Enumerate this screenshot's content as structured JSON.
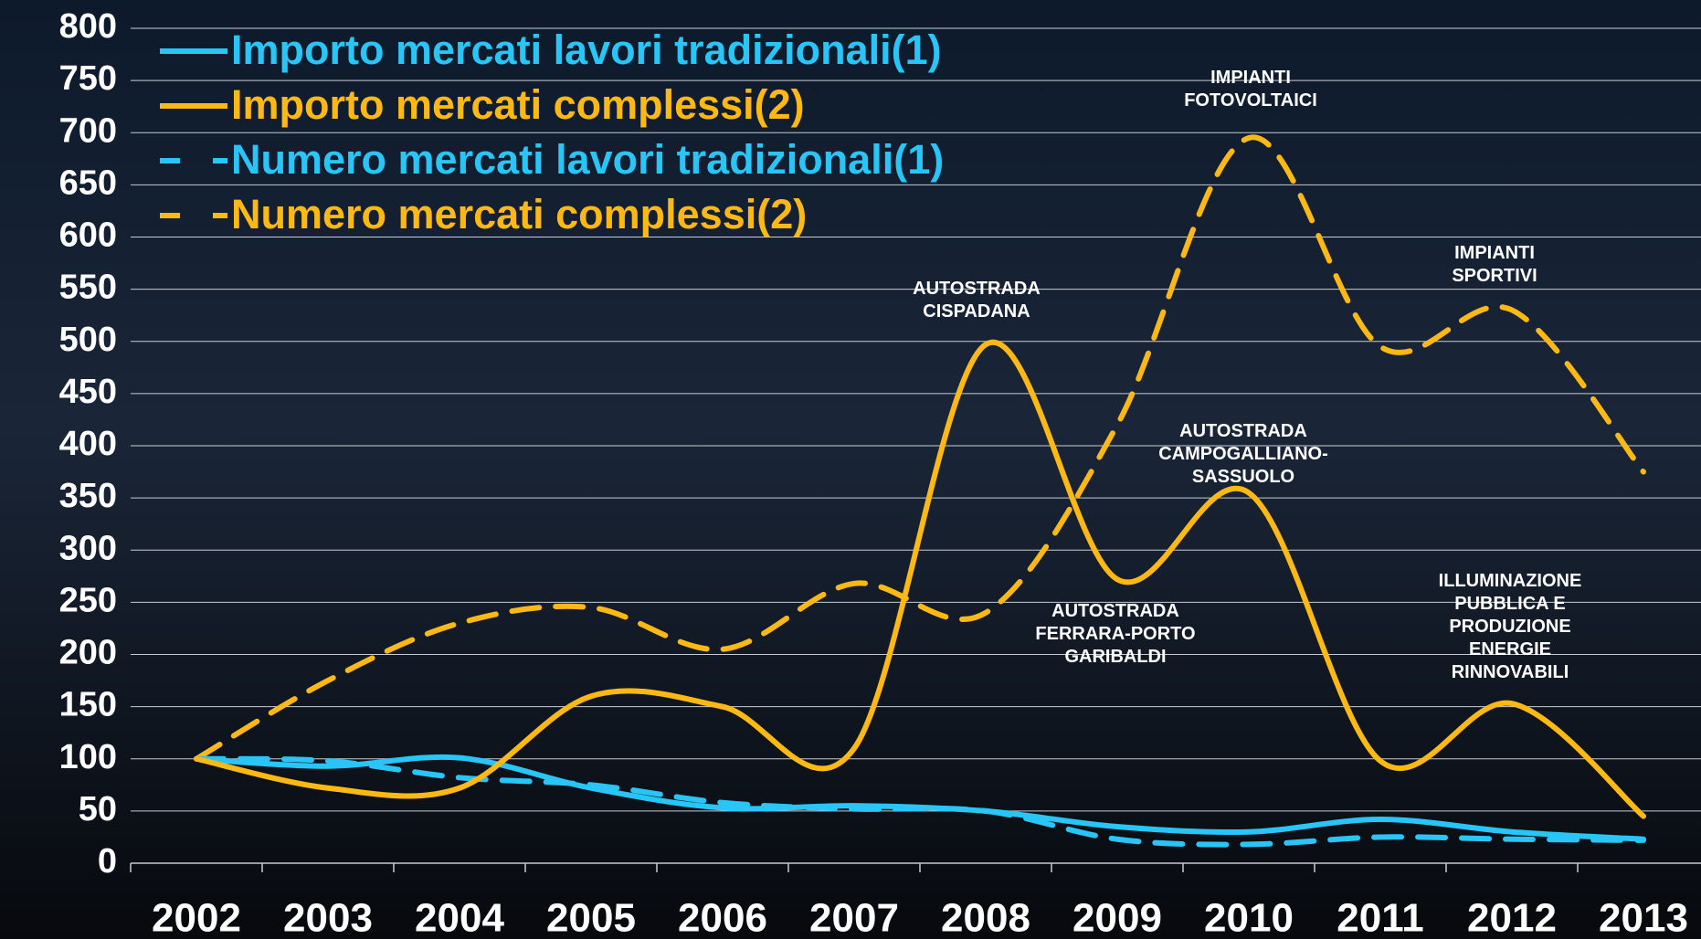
{
  "chart_data": {
    "type": "line",
    "categories": [
      "2002",
      "2003",
      "2004",
      "2005",
      "2006",
      "2007",
      "2008",
      "2009",
      "2010",
      "2011",
      "2012",
      "2013"
    ],
    "series": [
      {
        "name": "Importo mercati lavori tradizionali(1)",
        "color": "#29c5f6",
        "dash": false,
        "values": [
          100,
          93,
          101,
          72,
          53,
          55,
          50,
          35,
          30,
          42,
          30,
          23
        ]
      },
      {
        "name": "Importo mercati complessi(2)",
        "color": "#fdb913",
        "dash": false,
        "values": [
          100,
          72,
          72,
          160,
          150,
          110,
          497,
          272,
          355,
          98,
          153,
          45
        ]
      },
      {
        "name": "Numero mercati lavori tradizionali(1)",
        "color": "#29c5f6",
        "dash": true,
        "values": [
          100,
          98,
          82,
          75,
          58,
          52,
          50,
          23,
          18,
          25,
          23,
          22
        ]
      },
      {
        "name": "Numero mercati complessi(2)",
        "color": "#fdb913",
        "dash": true,
        "values": [
          100,
          175,
          230,
          245,
          205,
          268,
          240,
          420,
          695,
          495,
          530,
          375
        ]
      }
    ],
    "ylim": [
      0,
      800
    ],
    "yticks": [
      0,
      50,
      100,
      150,
      200,
      250,
      300,
      350,
      400,
      450,
      500,
      550,
      600,
      650,
      700,
      750,
      800
    ],
    "grid": true,
    "legend": "top-left",
    "annotations": [
      {
        "lines": [
          "IMPIANTI",
          "FOTOVOLTAICI"
        ]
      },
      {
        "lines": [
          "AUTOSTRADA",
          "CISPADANA"
        ]
      },
      {
        "lines": [
          "IMPIANTI",
          "SPORTIVI"
        ]
      },
      {
        "lines": [
          "AUTOSTRADA",
          "CAMPOGALLIANO-",
          "SASSUOLO"
        ]
      },
      {
        "lines": [
          "AUTOSTRADA",
          "FERRARA-PORTO",
          "GARIBALDI"
        ]
      },
      {
        "lines": [
          "ILLUMINAZIONE",
          "PUBBLICA E",
          "PRODUZIONE",
          "ENERGIE",
          "RINNOVABILI"
        ]
      }
    ]
  }
}
